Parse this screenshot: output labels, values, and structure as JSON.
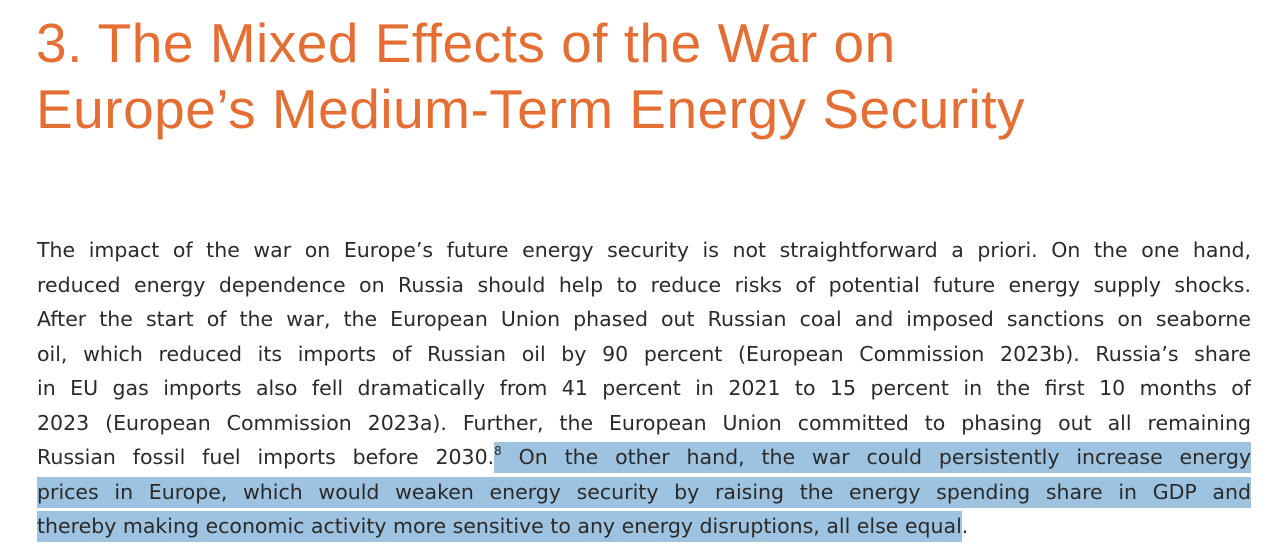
{
  "heading": {
    "line1": "3. The Mixed Effects of the War on",
    "line2": "Europe’s Medium-Term Energy Security",
    "color": "#e46f35"
  },
  "paragraph": {
    "lines": [
      "The impact of the war on Europe’s future energy security is not straightforward a priori. On the one hand,",
      "reduced energy dependence on Russia should help to reduce risks of potential future energy supply shocks.",
      "After the start of the war, the European Union phased out Russian coal and imposed sanctions on seaborne",
      "oil, which reduced its imports of Russian oil by 90 percent (European Commission 2023b). Russia’s share",
      "in EU gas imports also fell dramatically from 41 percent in 2021 to 15 percent in the first 10 months of",
      "2023 (European Commission 2023a). Further, the European Union committed to phasing out all remaining"
    ],
    "line8_plain": "Russian fossil fuel imports before 2030.",
    "footnote": "8",
    "line8_highlight": " On the other hand, the war could persistently increase energy",
    "line9_highlight": "prices in Europe, which would weaken energy security by raising the energy spending share in GDP and",
    "line10_highlight": "thereby making economic activity more sensitive to any energy disruptions, all else equal",
    "line10_end": ".",
    "highlight_color": "#9dc3e0"
  }
}
